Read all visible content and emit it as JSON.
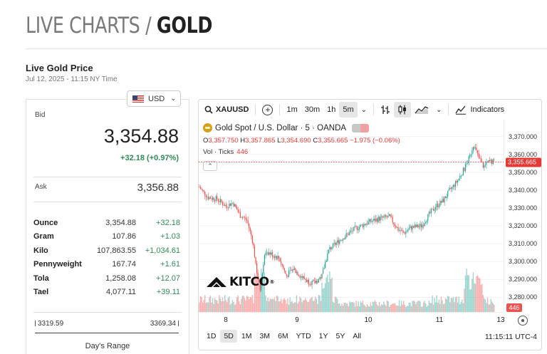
{
  "header": {
    "title_lead": "LIVE CHARTS / ",
    "title_metal": "GOLD",
    "live_label": "Live Gold Price",
    "timestamp": "Jul 12, 2025 - 11:15 NY Time"
  },
  "currency": {
    "selected": "USD",
    "icon": "us-flag-icon"
  },
  "price_panel": {
    "bid_label": "Bid",
    "bid": "3,354.88",
    "bid_change": "+32.18 (+0.97%)",
    "ask_label": "Ask",
    "ask": "3,356.88",
    "units": [
      {
        "name": "Ounce",
        "price": "3,354.88",
        "change": "+32.18"
      },
      {
        "name": "Gram",
        "price": "107.86",
        "change": "+1.03"
      },
      {
        "name": "Kilo",
        "price": "107,863.55",
        "change": "+1,034.61"
      },
      {
        "name": "Pennyweight",
        "price": "167.74",
        "change": "+1.61"
      },
      {
        "name": "Tola",
        "price": "1,258.08",
        "change": "+12.07"
      },
      {
        "name": "Tael",
        "price": "4,077.11",
        "change": "+39.11"
      }
    ],
    "range_low": "3319.59",
    "range_high": "3369.34",
    "range_label": "Day's Range"
  },
  "chart_toolbar": {
    "symbol": "XAUUSD",
    "intervals": [
      "1m",
      "30m",
      "1h",
      "5m"
    ],
    "active_interval": "5m",
    "indicators_label": "Indicators"
  },
  "chart_legend": {
    "title": "Gold Spot / U.S. Dollar · 5 · OANDA",
    "o_label": "O",
    "o": "3,357.750",
    "h_label": "H",
    "h": "3,357.865",
    "l_label": "L",
    "l": "3,354.690",
    "c_label": "C",
    "c": "3,355.665",
    "change": "−1.975 (−0.06%)",
    "vol_label": "Vol · Ticks",
    "vol": "446"
  },
  "brand": {
    "name": "KITCO",
    "mark": "®"
  },
  "range_tabs": [
    "1D",
    "5D",
    "1M",
    "3M",
    "6M",
    "YTD",
    "1Y",
    "5Y",
    "All"
  ],
  "active_range": "5D",
  "clock": "11:15:11 UTC-4",
  "colors": {
    "up": "#26a69a",
    "down": "#ef5350",
    "accent": "#e53935",
    "positive": "#2e8b57"
  },
  "chart_data": {
    "type": "candlestick",
    "title": "Gold Spot / U.S. Dollar · 5 · OANDA",
    "x_ticks": [
      "8",
      "9",
      "10",
      "11",
      "13"
    ],
    "y_ticks": [
      "3,280.000",
      "3,290.000",
      "3,300.000",
      "3,310.000",
      "3,320.000",
      "3,330.000",
      "3,340.000",
      "3,350.000",
      "3,360.000",
      "3,370.000"
    ],
    "ylim": [
      3275,
      3377
    ],
    "last_price": "3,355.665",
    "last_volume": "446",
    "price_path": [
      {
        "day": 7.62,
        "price": 3342
      },
      {
        "day": 7.75,
        "price": 3336
      },
      {
        "day": 7.88,
        "price": 3335
      },
      {
        "day": 8.0,
        "price": 3331
      },
      {
        "day": 8.1,
        "price": 3333
      },
      {
        "day": 8.2,
        "price": 3326
      },
      {
        "day": 8.3,
        "price": 3323
      },
      {
        "day": 8.38,
        "price": 3311
      },
      {
        "day": 8.43,
        "price": 3296
      },
      {
        "day": 8.48,
        "price": 3284
      },
      {
        "day": 8.55,
        "price": 3306
      },
      {
        "day": 8.65,
        "price": 3304
      },
      {
        "day": 8.75,
        "price": 3302
      },
      {
        "day": 8.85,
        "price": 3292
      },
      {
        "day": 8.95,
        "price": 3296
      },
      {
        "day": 9.05,
        "price": 3292
      },
      {
        "day": 9.15,
        "price": 3289
      },
      {
        "day": 9.25,
        "price": 3288
      },
      {
        "day": 9.35,
        "price": 3292
      },
      {
        "day": 9.4,
        "price": 3300
      },
      {
        "day": 9.45,
        "price": 3307
      },
      {
        "day": 9.6,
        "price": 3312
      },
      {
        "day": 9.8,
        "price": 3318
      },
      {
        "day": 10.0,
        "price": 3322
      },
      {
        "day": 10.15,
        "price": 3324
      },
      {
        "day": 10.3,
        "price": 3325
      },
      {
        "day": 10.42,
        "price": 3318
      },
      {
        "day": 10.5,
        "price": 3316
      },
      {
        "day": 10.6,
        "price": 3319
      },
      {
        "day": 10.75,
        "price": 3320
      },
      {
        "day": 10.85,
        "price": 3326
      },
      {
        "day": 10.95,
        "price": 3331
      },
      {
        "day": 11.05,
        "price": 3334
      },
      {
        "day": 11.15,
        "price": 3340
      },
      {
        "day": 11.25,
        "price": 3345
      },
      {
        "day": 11.35,
        "price": 3352
      },
      {
        "day": 11.42,
        "price": 3358
      },
      {
        "day": 11.48,
        "price": 3366
      },
      {
        "day": 11.55,
        "price": 3358
      },
      {
        "day": 11.62,
        "price": 3353
      },
      {
        "day": 11.7,
        "price": 3356
      },
      {
        "day": 11.78,
        "price": 3355.7
      }
    ]
  }
}
